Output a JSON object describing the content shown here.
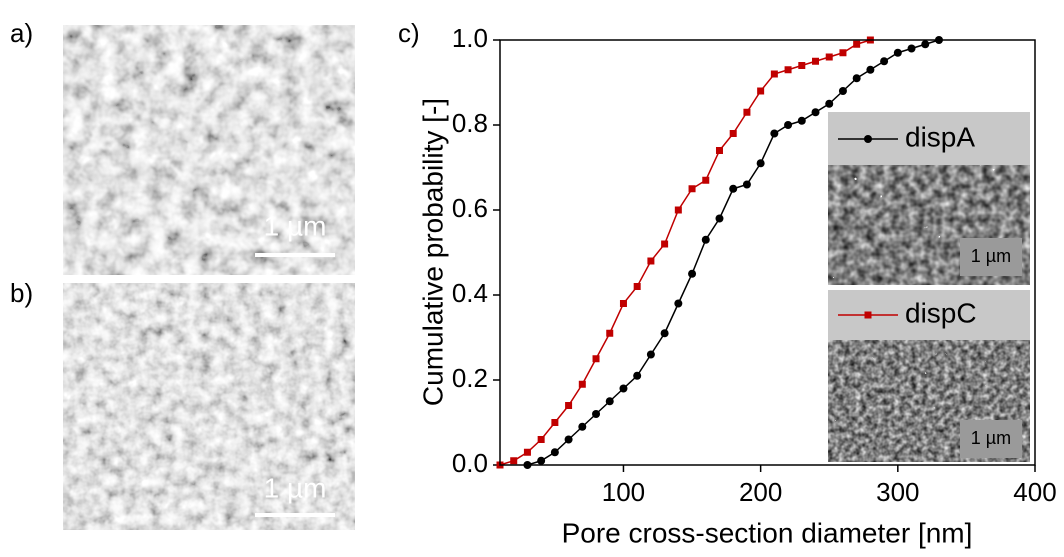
{
  "panels": {
    "a": {
      "label": "a)",
      "scale_bar": "1 µm"
    },
    "b": {
      "label": "b)",
      "scale_bar": "1 µm"
    },
    "c": {
      "label": "c)"
    }
  },
  "insets": [
    {
      "scale_bar": "1 µm"
    },
    {
      "scale_bar": "1 µm"
    }
  ],
  "chart_data": {
    "type": "line",
    "xlabel": "Pore cross-section diameter [nm]",
    "ylabel": "Cumulative probability [-]",
    "xlim": [
      10,
      400
    ],
    "xticks": [
      100,
      200,
      300,
      400
    ],
    "ylim": [
      0,
      1
    ],
    "yticks": [
      {
        "value": 0,
        "label": "0.0"
      },
      0.2,
      0.4,
      0.6,
      0.8,
      {
        "value": 1,
        "label": "1.0"
      }
    ],
    "series": [
      {
        "name": "dispA",
        "color": "#000000",
        "marker": "circle",
        "x": [
          30,
          40,
          50,
          60,
          70,
          80,
          90,
          100,
          110,
          120,
          130,
          140,
          150,
          160,
          170,
          180,
          190,
          200,
          210,
          220,
          230,
          240,
          250,
          260,
          270,
          280,
          290,
          300,
          310,
          320,
          330
        ],
        "values": [
          0,
          0.01,
          0.03,
          0.06,
          0.09,
          0.12,
          0.15,
          0.18,
          0.21,
          0.26,
          0.31,
          0.38,
          0.45,
          0.53,
          0.58,
          0.65,
          0.66,
          0.71,
          0.78,
          0.8,
          0.81,
          0.83,
          0.85,
          0.88,
          0.91,
          0.93,
          0.95,
          0.97,
          0.98,
          0.99,
          1
        ]
      },
      {
        "name": "dispC",
        "color": "#c00000",
        "marker": "square",
        "x": [
          10,
          20,
          30,
          40,
          50,
          60,
          70,
          80,
          90,
          100,
          110,
          120,
          130,
          140,
          150,
          160,
          170,
          180,
          190,
          200,
          210,
          220,
          230,
          240,
          250,
          260,
          270,
          280
        ],
        "values": [
          0,
          0.01,
          0.03,
          0.06,
          0.1,
          0.14,
          0.19,
          0.25,
          0.31,
          0.38,
          0.42,
          0.48,
          0.52,
          0.6,
          0.65,
          0.67,
          0.74,
          0.78,
          0.83,
          0.88,
          0.92,
          0.93,
          0.94,
          0.95,
          0.96,
          0.97,
          0.99,
          1
        ]
      }
    ]
  }
}
